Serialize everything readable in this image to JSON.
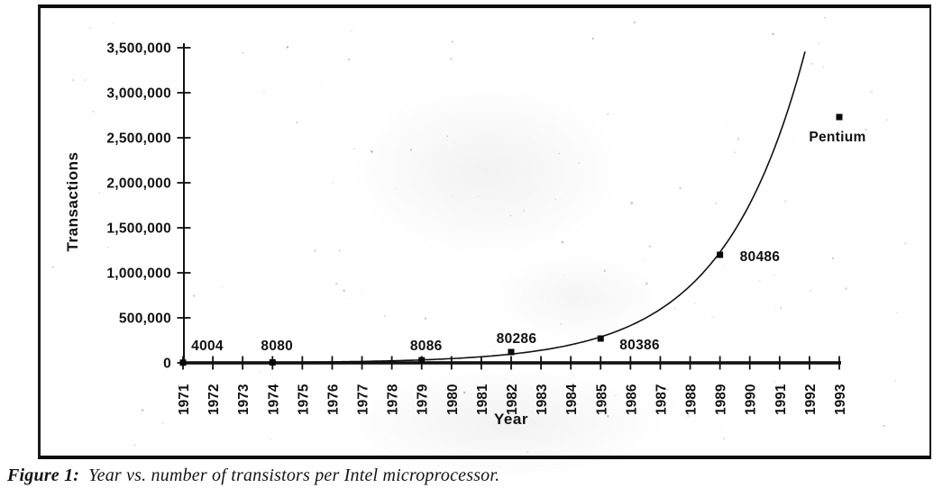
{
  "figure": {
    "caption_prefix": "Figure 1:",
    "caption_body": "Year vs. number of transistors per Intel microprocessor."
  },
  "chart_data": {
    "type": "scatter",
    "title": "",
    "xlabel": "Year",
    "ylabel": "Transactions",
    "xlim": [
      1971,
      1993
    ],
    "ylim": [
      0,
      3500000
    ],
    "grid": false,
    "legend": "none",
    "trendline": "exponential",
    "x_ticks": [
      "1971",
      "1972",
      "1973",
      "1974",
      "1975",
      "1976",
      "1977",
      "1978",
      "1979",
      "1980",
      "1981",
      "1982",
      "1983",
      "1984",
      "1985",
      "1986",
      "1987",
      "1988",
      "1989",
      "1990",
      "1991",
      "1992",
      "1993"
    ],
    "y_tick_step": 500000,
    "y_tick_labels": [
      "0",
      "500,000",
      "1,000,000",
      "1,500,000",
      "2,000,000",
      "2,500,000",
      "3,000,000",
      "3,500,000"
    ],
    "points": [
      {
        "label": "4004",
        "year": 1971,
        "value": 2300
      },
      {
        "label": "8080",
        "year": 1974,
        "value": 5000
      },
      {
        "label": "8086",
        "year": 1979,
        "value": 29000
      },
      {
        "label": "80286",
        "year": 1982,
        "value": 120000
      },
      {
        "label": "80386",
        "year": 1985,
        "value": 270000
      },
      {
        "label": "80486",
        "year": 1989,
        "value": 1200000
      },
      {
        "label": "Pentium",
        "year": 1993,
        "value": 2730000
      }
    ]
  }
}
